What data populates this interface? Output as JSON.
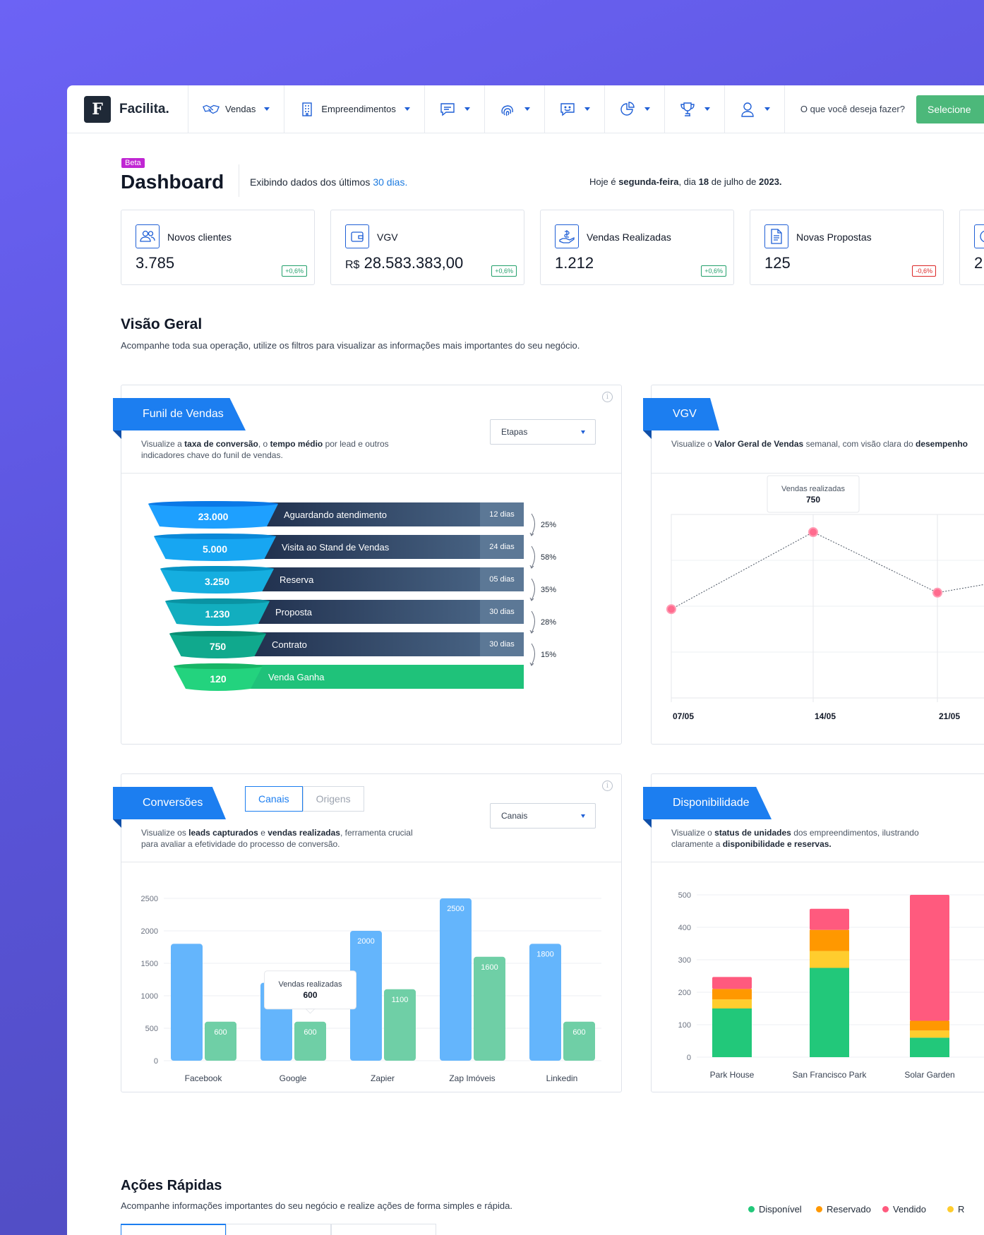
{
  "brand": {
    "name": "Facilita."
  },
  "nav": {
    "items": [
      {
        "label": "Vendas",
        "icon": "handshake-icon"
      },
      {
        "label": "Empreendimentos",
        "icon": "building-icon"
      }
    ],
    "icon_menus": [
      "chat-icon",
      "fingerprint-icon",
      "support-icon",
      "pie-chart-icon",
      "trophy-icon",
      "user-icon"
    ],
    "search_prompt": "O que você deseja fazer?",
    "select_label": "Selecione"
  },
  "header": {
    "badge": "Beta",
    "title": "Dashboard",
    "showing_prefix": "Exibindo dados dos últimos",
    "showing_period": "30 dias.",
    "today_prefix": "Hoje é",
    "today_weekday": "segunda-feira",
    "today_mid1": ", dia",
    "today_day": "18",
    "today_mid2": "de julho de",
    "today_year": "2023."
  },
  "stats": [
    {
      "label": "Novos clientes",
      "value": "3.785",
      "delta": "+0,6%",
      "icon": "users-icon",
      "positive": true
    },
    {
      "label": "VGV",
      "currency": "R$",
      "value": "28.583.383,00",
      "delta": "+0,6%",
      "icon": "wallet-icon",
      "positive": true
    },
    {
      "label": "Vendas Realizadas",
      "value": "1.212",
      "delta": "+0,6%",
      "icon": "hand-money-icon",
      "positive": true
    },
    {
      "label": "Novas Propostas",
      "value": "125",
      "delta": "-0,6%",
      "icon": "document-icon",
      "positive": false
    },
    {
      "value": "2"
    }
  ],
  "overview": {
    "title": "Visão Geral",
    "subtitle": "Acompanhe toda sua operação, utilize os filtros para visualizar as informações mais importantes do seu negócio."
  },
  "funnel": {
    "title": "Funil de Vendas",
    "desc_parts": [
      "Visualize a ",
      "taxa de conversão",
      ", o ",
      "tempo médio",
      " por lead e outros",
      "indicadores chave do funil de vendas."
    ],
    "filter": "Etapas",
    "stages": [
      {
        "count": "23.000",
        "label": "Aguardando atendimento",
        "days": "12 dias"
      },
      {
        "count": "5.000",
        "label": "Visita ao Stand de Vendas",
        "days": "24 dias"
      },
      {
        "count": "3.250",
        "label": "Reserva",
        "days": "05 dias"
      },
      {
        "count": "1.230",
        "label": "Proposta",
        "days": "30 dias"
      },
      {
        "count": "750",
        "label": "Contrato",
        "days": "30 dias"
      },
      {
        "count": "120",
        "label": "Venda Ganha",
        "days": ""
      }
    ],
    "conversions": [
      "25%",
      "58%",
      "35%",
      "28%",
      "15%"
    ]
  },
  "vgv": {
    "title": "VGV",
    "desc_parts": [
      "Visualize o ",
      "Valor Geral de Vendas",
      " semanal, com visão clara do ",
      "desempenho"
    ],
    "tooltip_label": "Vendas realizadas",
    "tooltip_value": "750"
  },
  "conversions": {
    "title": "Conversões",
    "tabs": [
      "Canais",
      "Origens"
    ],
    "filter": "Canais",
    "desc_parts": [
      "Visualize os ",
      "leads capturados",
      " e ",
      "vendas realizadas",
      ", ferramenta crucial",
      "para avaliar a efetividade do processo de conversão."
    ],
    "tooltip_label": "Vendas realizadas",
    "tooltip_value": "600"
  },
  "availability": {
    "title": "Disponibilidade",
    "desc_parts": [
      "Visualize o ",
      "status de unidades",
      " dos empreendimentos, ilustrando",
      "claramente a ",
      "disponibilidade e reservas."
    ],
    "legend": [
      {
        "label": "Disponível",
        "color": "#22c87a"
      },
      {
        "label": "Reservado",
        "color": "#ff9800"
      },
      {
        "label": "Vendido",
        "color": "#ff5a7e"
      },
      {
        "label": "R",
        "color": "#ffcd2e"
      }
    ]
  },
  "quick_actions": {
    "title": "Ações Rápidas",
    "subtitle": "Acompanhe informações importantes do seu negócio e realize ações de forma simples e rápida."
  },
  "chart_data": [
    {
      "type": "line",
      "x": [
        "07/05",
        "14/05",
        "21/05"
      ],
      "series": [
        {
          "values": [
            330,
            750,
            420
          ]
        }
      ]
    },
    {
      "type": "bar",
      "categories": [
        "Facebook",
        "Google",
        "Zapier",
        "Zap Imóveis",
        "Linkedin"
      ],
      "ylim": [
        0,
        2500
      ],
      "yticks": [
        0,
        500,
        1000,
        1500,
        2000,
        2500
      ],
      "series": [
        {
          "values": [
            1800,
            1200,
            2000,
            2500,
            1800
          ]
        },
        {
          "name": "Vendas realizadas",
          "values": [
            600,
            600,
            1100,
            1600,
            600
          ]
        }
      ],
      "labels_series0": [
        "",
        "",
        "2000",
        "2500",
        "1800"
      ]
    },
    {
      "type": "bar",
      "stacked": true,
      "categories": [
        "Park House",
        "San Francisco Park",
        "Solar Garden"
      ],
      "ylim": [
        0,
        500
      ],
      "yticks": [
        0,
        100,
        200,
        300,
        400,
        500
      ],
      "series": [
        {
          "name": "Disponível",
          "values": [
            150,
            275,
            60
          ]
        },
        {
          "name": "R",
          "values": [
            28,
            52,
            22
          ]
        },
        {
          "name": "Reservado",
          "values": [
            32,
            65,
            30
          ]
        },
        {
          "name": "Vendido",
          "values": [
            37,
            65,
            388
          ]
        }
      ]
    }
  ]
}
